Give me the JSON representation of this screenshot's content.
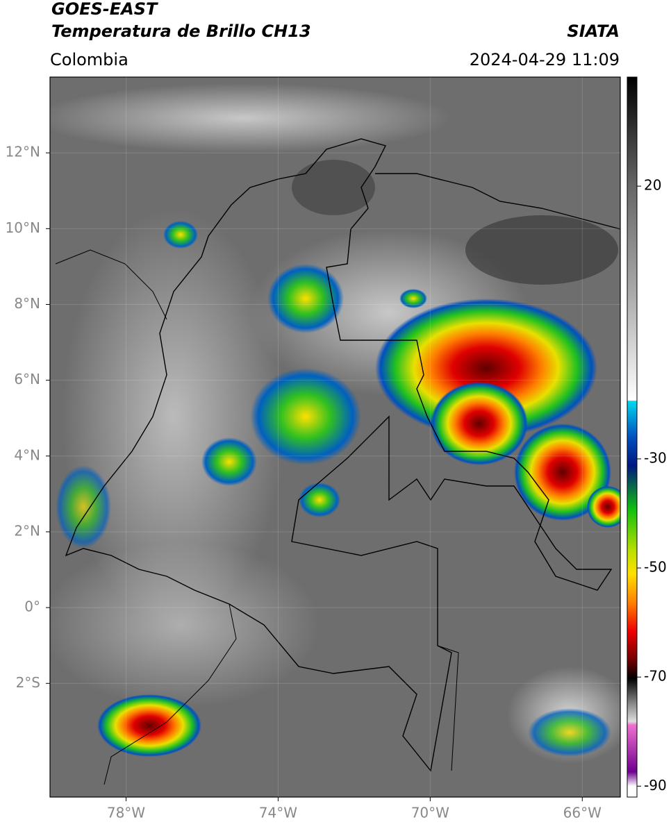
{
  "header": {
    "title": "GOES-EAST",
    "subtitle": "Temperatura de Brillo CH13",
    "agency": "SIATA",
    "region": "Colombia",
    "datetime": "2024-04-29 11:09"
  },
  "map": {
    "lonlim": [
      -80,
      -65
    ],
    "latlim": [
      -5,
      14
    ],
    "lat_ticks": [
      {
        "value": 12,
        "label": "12°N"
      },
      {
        "value": 10,
        "label": "10°N"
      },
      {
        "value": 8,
        "label": "8°N"
      },
      {
        "value": 6,
        "label": "6°N"
      },
      {
        "value": 4,
        "label": "4°N"
      },
      {
        "value": 2,
        "label": "2°N"
      },
      {
        "value": 0,
        "label": "0°"
      },
      {
        "value": -2,
        "label": "2°S"
      }
    ],
    "lon_ticks": [
      {
        "value": -78,
        "label": "78°W"
      },
      {
        "value": -74,
        "label": "74°W"
      },
      {
        "value": -70,
        "label": "70°W"
      },
      {
        "value": -66,
        "label": "66°W"
      }
    ]
  },
  "colorbar": {
    "range": [
      -92,
      40
    ],
    "ticks": [
      20,
      -30,
      -50,
      -70,
      -90
    ]
  }
}
